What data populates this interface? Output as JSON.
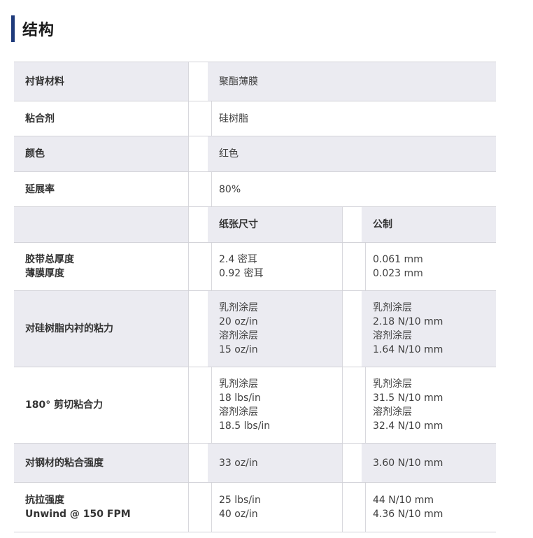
{
  "page": {
    "title": "结构",
    "accent_color": "#1e3a7b",
    "shaded_row_color": "#ebebf1",
    "border_color": "#d2d2d8"
  },
  "table": {
    "unit_header": {
      "imperial": "纸张尺寸",
      "metric": "公制"
    },
    "rows": [
      {
        "type": "simple",
        "shaded": true,
        "label": [
          "衬背材料"
        ],
        "value": [
          "聚酯薄膜"
        ]
      },
      {
        "type": "simple",
        "shaded": false,
        "label": [
          "粘合剂"
        ],
        "value": [
          "硅树脂"
        ]
      },
      {
        "type": "simple",
        "shaded": true,
        "label": [
          "颜色"
        ],
        "value": [
          "红色"
        ]
      },
      {
        "type": "simple",
        "shaded": false,
        "label": [
          "延展率"
        ],
        "value": [
          "80%"
        ]
      },
      {
        "type": "header",
        "shaded": true,
        "label": [
          ""
        ],
        "imperial": [
          "纸张尺寸"
        ],
        "metric": [
          "公制"
        ]
      },
      {
        "type": "spec",
        "shaded": false,
        "label": [
          "胶带总厚度",
          "薄膜厚度"
        ],
        "imperial": [
          "2.4 密耳",
          "0.92 密耳"
        ],
        "metric": [
          "0.061 mm",
          "0.023 mm"
        ]
      },
      {
        "type": "spec",
        "shaded": true,
        "label": [
          "对硅树脂内衬的粘力"
        ],
        "imperial": [
          "乳剂涂层",
          "20 oz/in",
          "溶剂涂层",
          "15 oz/in"
        ],
        "metric": [
          "乳剂涂层",
          "2.18 N/10 mm",
          "溶剂涂层",
          "1.64 N/10 mm"
        ]
      },
      {
        "type": "spec",
        "shaded": false,
        "label": [
          "180° 剪切粘合力"
        ],
        "imperial": [
          "乳剂涂层",
          "18 lbs/in",
          "溶剂涂层",
          "18.5 lbs/in"
        ],
        "metric": [
          "乳剂涂层",
          "31.5 N/10 mm",
          "溶剂涂层",
          "32.4 N/10 mm"
        ]
      },
      {
        "type": "spec",
        "shaded": true,
        "label": [
          "对钢材的粘合强度"
        ],
        "imperial": [
          "33 oz/in"
        ],
        "metric": [
          "3.60 N/10 mm"
        ]
      },
      {
        "type": "spec",
        "shaded": false,
        "label": [
          "抗拉强度",
          "Unwind @ 150 FPM"
        ],
        "imperial": [
          "25 lbs/in",
          "40 oz/in"
        ],
        "metric": [
          "44 N/10 mm",
          "4.36 N/10 mm"
        ]
      }
    ]
  }
}
